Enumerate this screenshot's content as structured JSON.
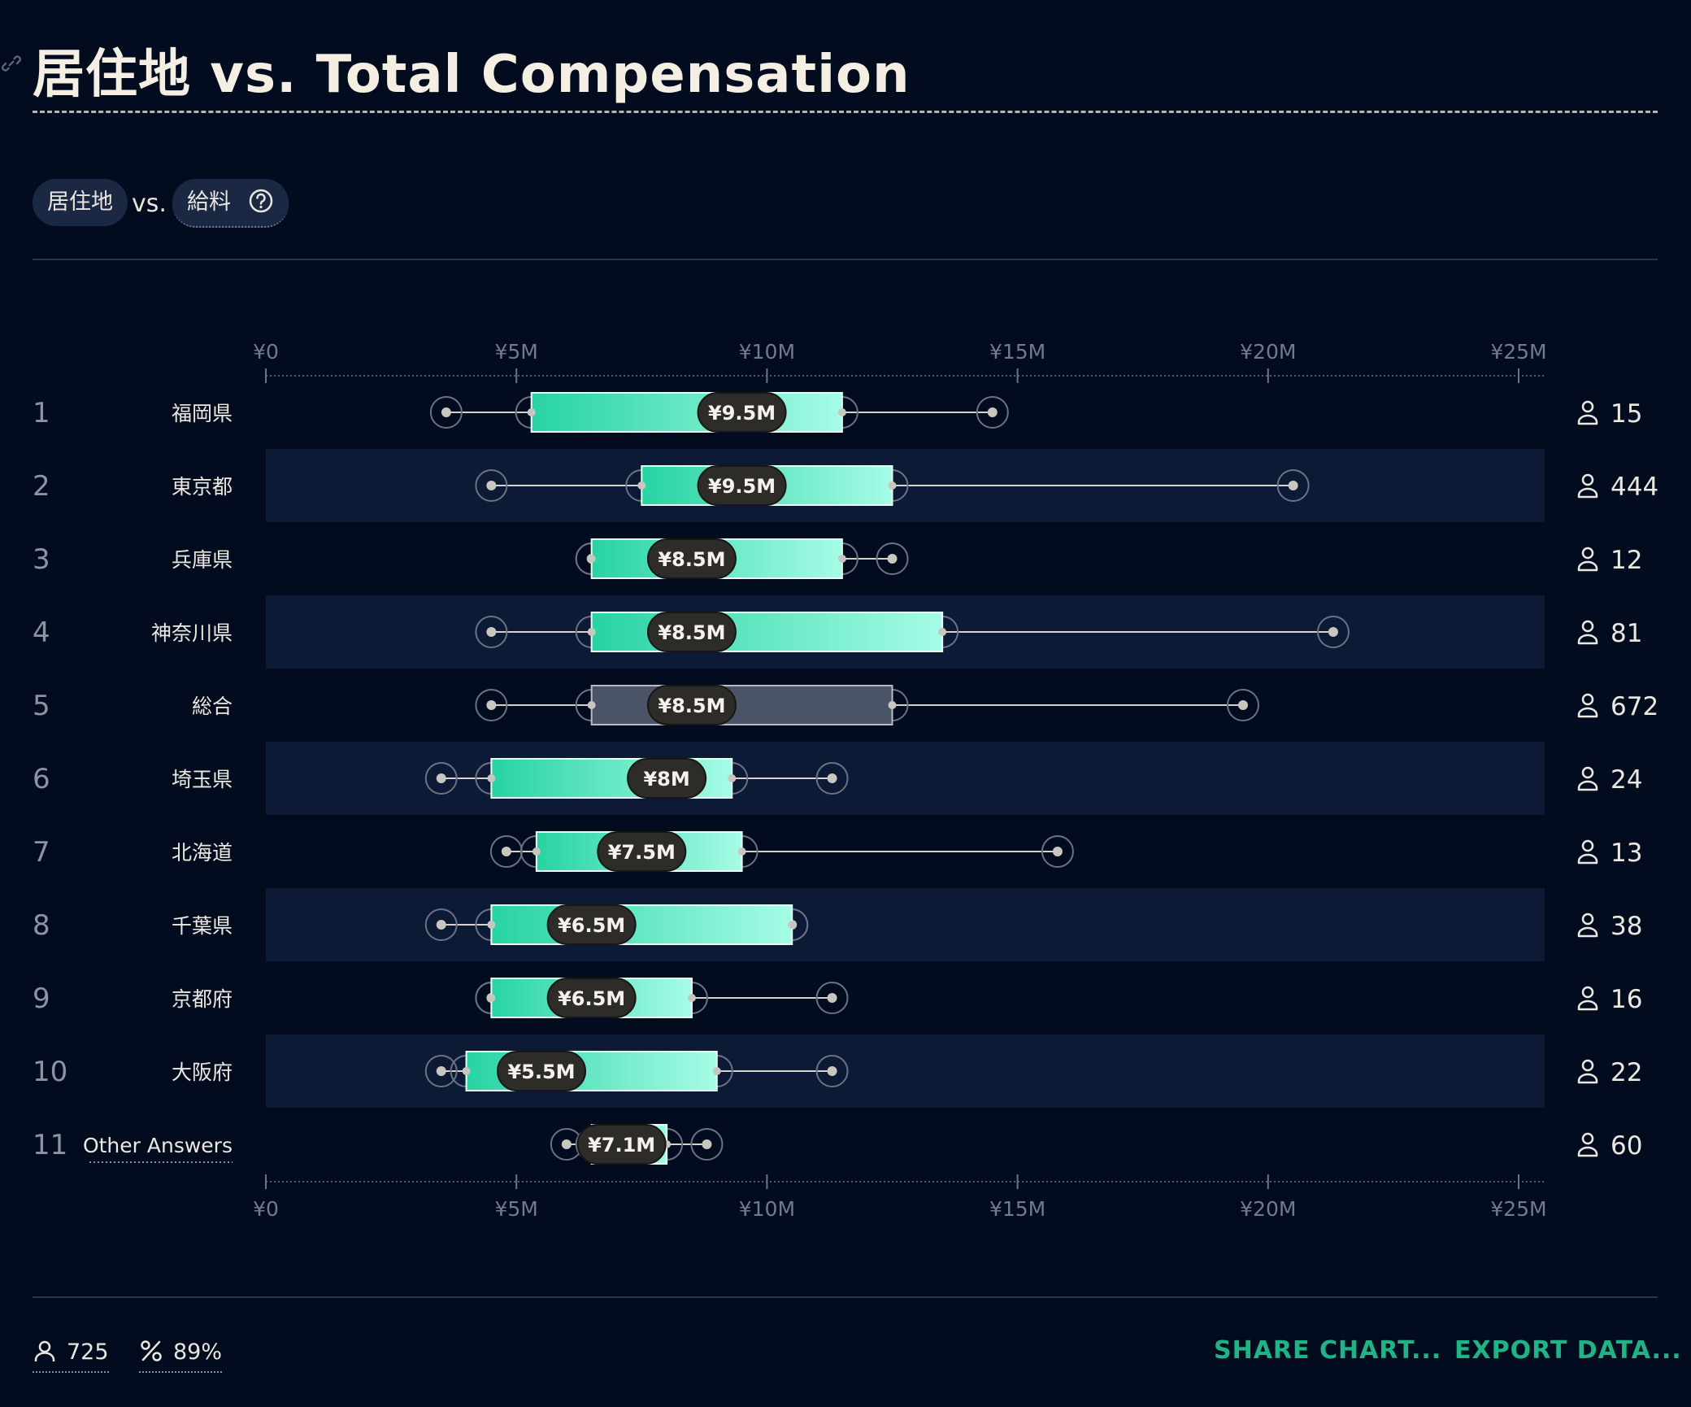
{
  "title": "居住地 vs. Total Compensation",
  "filters": {
    "chip1": "居住地",
    "vs": "vs.",
    "chip2": "給料"
  },
  "colors": {
    "box_start": "#27d3a3",
    "box_end": "#a6fce6",
    "overall_box": "#4a5466",
    "band": "#0d1a35",
    "accent": "#1fb386"
  },
  "footer": {
    "respondents": "725",
    "percent": "89%",
    "share_label": "SHARE CHART...",
    "export_label": "EXPORT DATA..."
  },
  "chart_data": {
    "type": "boxplot",
    "orientation": "horizontal",
    "x_ticks": [
      "¥0",
      "¥5M",
      "¥10M",
      "¥15M",
      "¥20M",
      "¥25M"
    ],
    "xlim": [
      0,
      25000000
    ],
    "legend": "none",
    "rows": [
      {
        "rank": "1",
        "label": "福岡県",
        "min": 3600000,
        "q1": 5300000,
        "median": 9500000,
        "q3": 11500000,
        "max": 14500000,
        "median_label": "¥9.5M",
        "count": "15"
      },
      {
        "rank": "2",
        "label": "東京都",
        "min": 4500000,
        "q1": 7500000,
        "median": 9500000,
        "q3": 12500000,
        "max": 20500000,
        "median_label": "¥9.5M",
        "count": "444"
      },
      {
        "rank": "3",
        "label": "兵庫県",
        "min": 6500000,
        "q1": 6500000,
        "median": 8500000,
        "q3": 11500000,
        "max": 12500000,
        "median_label": "¥8.5M",
        "count": "12"
      },
      {
        "rank": "4",
        "label": "神奈川県",
        "min": 4500000,
        "q1": 6500000,
        "median": 8500000,
        "q3": 13500000,
        "max": 21300000,
        "median_label": "¥8.5M",
        "count": "81"
      },
      {
        "rank": "5",
        "label": "総合",
        "min": 4500000,
        "q1": 6500000,
        "median": 8500000,
        "q3": 12500000,
        "max": 19500000,
        "median_label": "¥8.5M",
        "count": "672",
        "overall": true
      },
      {
        "rank": "6",
        "label": "埼玉県",
        "min": 3500000,
        "q1": 4500000,
        "median": 8000000,
        "q3": 9300000,
        "max": 11300000,
        "median_label": "¥8M",
        "count": "24"
      },
      {
        "rank": "7",
        "label": "北海道",
        "min": 4800000,
        "q1": 5400000,
        "median": 7500000,
        "q3": 9500000,
        "max": 15800000,
        "median_label": "¥7.5M",
        "count": "13"
      },
      {
        "rank": "8",
        "label": "千葉県",
        "min": 3500000,
        "q1": 4500000,
        "median": 6500000,
        "q3": 10500000,
        "max": 10500000,
        "median_label": "¥6.5M",
        "count": "38"
      },
      {
        "rank": "9",
        "label": "京都府",
        "min": 4500000,
        "q1": 4500000,
        "median": 6500000,
        "q3": 8500000,
        "max": 11300000,
        "median_label": "¥6.5M",
        "count": "16"
      },
      {
        "rank": "10",
        "label": "大阪府",
        "min": 3500000,
        "q1": 4000000,
        "median": 5500000,
        "q3": 9000000,
        "max": 11300000,
        "median_label": "¥5.5M",
        "count": "22"
      },
      {
        "rank": "11",
        "label": "Other Answers",
        "min": 6000000,
        "q1": 6500000,
        "median": 7100000,
        "q3": 8000000,
        "max": 8800000,
        "median_label": "¥7.1M",
        "count": "60",
        "dotted": true
      }
    ]
  }
}
